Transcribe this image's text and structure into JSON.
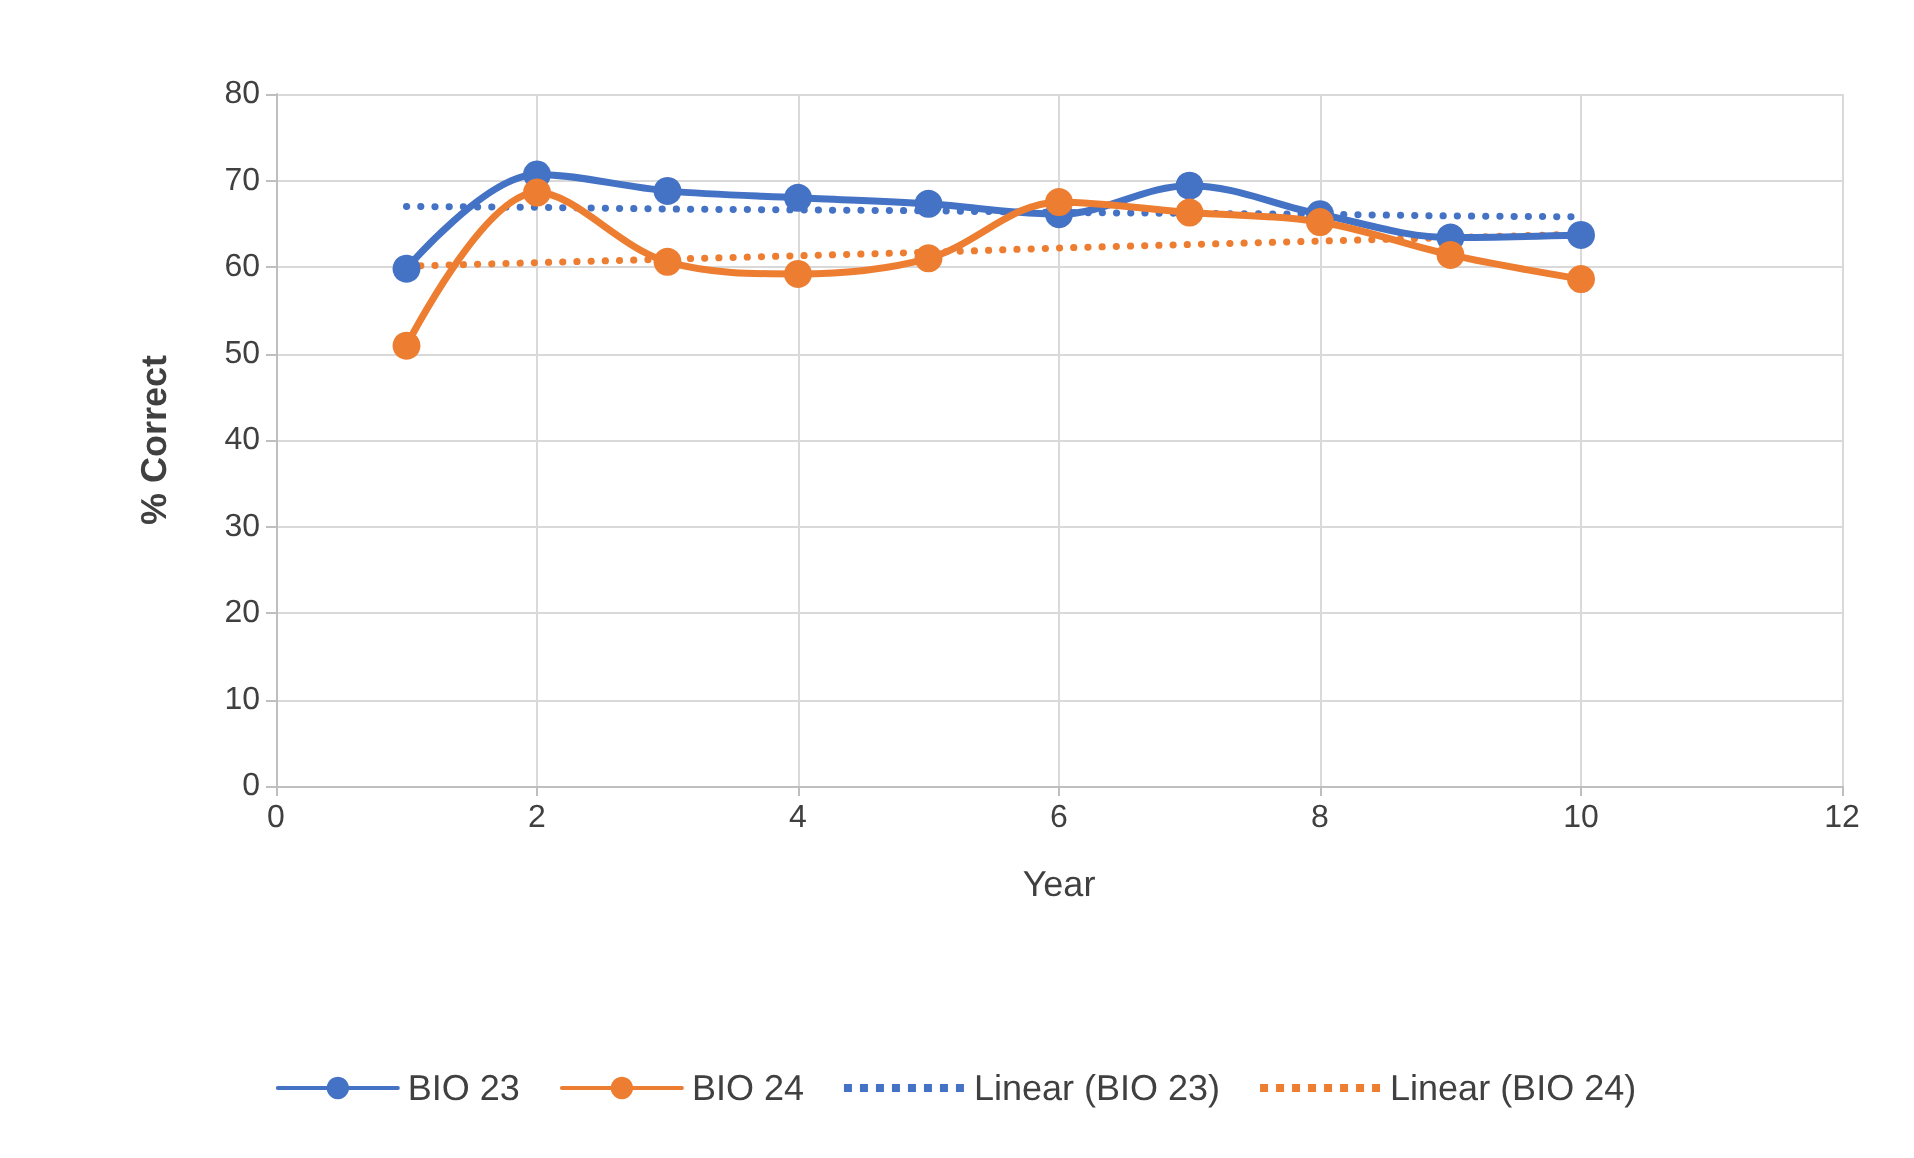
{
  "chart_data": {
    "type": "line",
    "xlabel": "Year",
    "ylabel": "% Correct",
    "xlim": [
      0,
      12
    ],
    "xticks": [
      0,
      2,
      4,
      6,
      8,
      10,
      12
    ],
    "ylim": [
      0,
      80
    ],
    "yticks": [
      0,
      10,
      20,
      30,
      40,
      50,
      60,
      70,
      80
    ],
    "grid": true,
    "legend": "bottom",
    "marker": "circle",
    "x": [
      1,
      2,
      3,
      4,
      5,
      6,
      7,
      8,
      9,
      10
    ],
    "series": [
      {
        "name": "BIO 23",
        "color": "#4472c4",
        "values": [
          59.8,
          70.7,
          68.8,
          68.0,
          67.3,
          66.1,
          69.4,
          66.1,
          63.4,
          63.7
        ]
      },
      {
        "name": "BIO 24",
        "color": "#ed7d31",
        "values": [
          50.9,
          68.6,
          60.6,
          59.2,
          61.0,
          67.5,
          66.3,
          65.2,
          61.4,
          58.6
        ]
      },
      {
        "name": "Linear (BIO 23)",
        "color": "#4472c4",
        "values": [
          67.0,
          66.9,
          66.7,
          66.6,
          66.5,
          66.3,
          66.2,
          66.1,
          65.9,
          65.8
        ],
        "marker": "none",
        "line_style": "dotted"
      },
      {
        "name": "Linear (BIO 24)",
        "color": "#ed7d31",
        "values": [
          60.1,
          60.5,
          60.9,
          61.3,
          61.7,
          62.2,
          62.6,
          63.0,
          63.4,
          63.8
        ],
        "marker": "none",
        "line_style": "dotted"
      }
    ]
  }
}
